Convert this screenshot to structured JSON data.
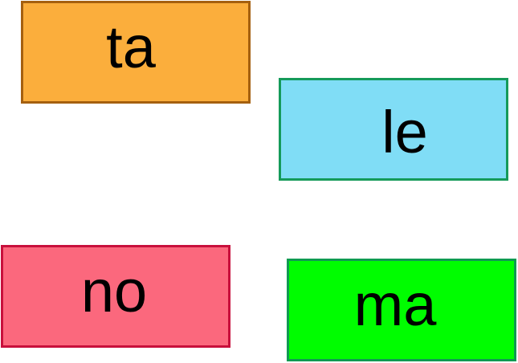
{
  "cards": [
    {
      "id": "ta",
      "label": "ta",
      "fill": "#fbae3c",
      "border": "#a5600f"
    },
    {
      "id": "le",
      "label": "le",
      "fill": "#80ddf6",
      "border": "#159a5a"
    },
    {
      "id": "no",
      "label": "no",
      "fill": "#fb687d",
      "border": "#c8103c"
    },
    {
      "id": "ma",
      "label": "ma",
      "fill": "#00fd00",
      "border": "#0f9a52"
    }
  ]
}
